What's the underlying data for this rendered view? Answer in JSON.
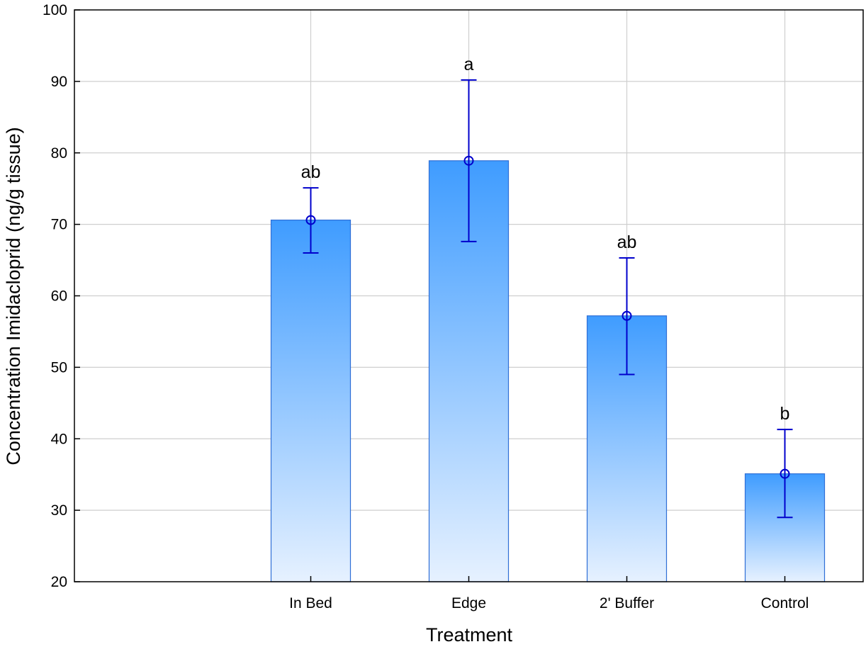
{
  "chart_data": {
    "type": "bar",
    "title": "",
    "xlabel": "Treatment",
    "ylabel": "Concentration Imidacloprid (ng/g tissue)",
    "categories": [
      "In Bed",
      "Edge",
      "2' Buffer",
      "Control"
    ],
    "values": [
      70.6,
      78.9,
      57.2,
      35.1
    ],
    "error_low": [
      66.0,
      67.6,
      49.0,
      29.0
    ],
    "error_high": [
      75.1,
      90.2,
      65.3,
      41.3
    ],
    "significance_labels": [
      "ab",
      "a",
      "ab",
      "b"
    ],
    "ylim": [
      20,
      100
    ],
    "yticks": [
      20,
      30,
      40,
      50,
      60,
      70,
      80,
      90,
      100
    ],
    "grid": true,
    "legend": "none",
    "colors": {
      "bar_top": "#3f9cff",
      "bar_bottom": "#e6f1ff",
      "bar_edge": "#2f6fd6",
      "error_bar": "#0000cc",
      "grid": "#cfcfcf",
      "axis": "#000000"
    }
  }
}
